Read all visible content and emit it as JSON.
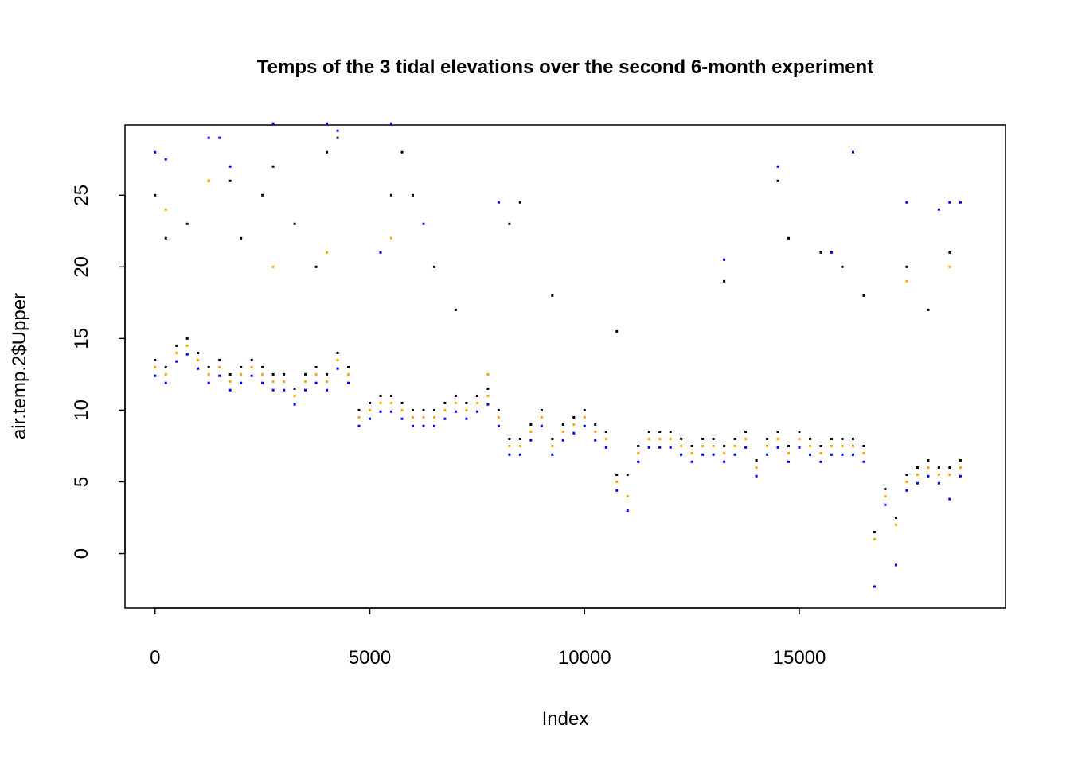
{
  "chart_data": {
    "type": "scatter",
    "title": "Temps of the 3 tidal elevations over the second 6-month experiment",
    "xlabel": "Index",
    "ylabel": "air.temp.2$Upper",
    "xlim": [
      -700,
      19800
    ],
    "ylim": [
      -3.8,
      29.9
    ],
    "xticks": [
      "0",
      "5000",
      "10000",
      "15000"
    ],
    "xtick_values": [
      0,
      5000,
      10000,
      15000
    ],
    "yticks": [
      "0",
      "5",
      "10",
      "15",
      "20",
      "25"
    ],
    "ytick_values": [
      0,
      5,
      10,
      15,
      20,
      25
    ],
    "grid": false,
    "legend": "none",
    "series": [
      {
        "color": "#000000",
        "points": [
          [
            0,
            13.5
          ],
          [
            250,
            13
          ],
          [
            500,
            14.5
          ],
          [
            750,
            15
          ],
          [
            1000,
            14
          ],
          [
            1250,
            13
          ],
          [
            1500,
            13.5
          ],
          [
            1750,
            12.5
          ],
          [
            2000,
            13
          ],
          [
            2250,
            13.5
          ],
          [
            2500,
            13
          ],
          [
            2750,
            12.5
          ],
          [
            3000,
            12.5
          ],
          [
            3250,
            11.5
          ],
          [
            3500,
            12.5
          ],
          [
            3750,
            13
          ],
          [
            4000,
            12.5
          ],
          [
            4250,
            14
          ],
          [
            4500,
            13
          ],
          [
            4750,
            10
          ],
          [
            5000,
            10.5
          ],
          [
            5250,
            11
          ],
          [
            5500,
            11
          ],
          [
            5750,
            10.5
          ],
          [
            6000,
            10
          ],
          [
            6250,
            10
          ],
          [
            6500,
            10
          ],
          [
            6750,
            10.5
          ],
          [
            7000,
            11
          ],
          [
            7250,
            10.5
          ],
          [
            7500,
            11
          ],
          [
            7750,
            11.5
          ],
          [
            8000,
            10
          ],
          [
            8250,
            8
          ],
          [
            8500,
            8
          ],
          [
            8750,
            9
          ],
          [
            9000,
            10
          ],
          [
            9250,
            8
          ],
          [
            9500,
            9
          ],
          [
            9750,
            9.5
          ],
          [
            10000,
            10
          ],
          [
            10250,
            9
          ],
          [
            10500,
            8.5
          ],
          [
            10750,
            5.5
          ],
          [
            11000,
            5.5
          ],
          [
            11250,
            7.5
          ],
          [
            11500,
            8.5
          ],
          [
            11750,
            8.5
          ],
          [
            12000,
            8.5
          ],
          [
            12250,
            8
          ],
          [
            12500,
            7.5
          ],
          [
            12750,
            8
          ],
          [
            13000,
            8
          ],
          [
            13250,
            7.5
          ],
          [
            13500,
            8
          ],
          [
            13750,
            8.5
          ],
          [
            14000,
            6.5
          ],
          [
            14250,
            8
          ],
          [
            14500,
            8.5
          ],
          [
            14750,
            7.5
          ],
          [
            15000,
            8.5
          ],
          [
            15250,
            8
          ],
          [
            15500,
            7.5
          ],
          [
            15750,
            8
          ],
          [
            16000,
            8
          ],
          [
            16250,
            8
          ],
          [
            16500,
            7.5
          ],
          [
            16750,
            1.5
          ],
          [
            17000,
            4.5
          ],
          [
            17250,
            2.5
          ],
          [
            17500,
            5.5
          ],
          [
            17750,
            6
          ],
          [
            18000,
            6.5
          ],
          [
            18250,
            6
          ],
          [
            18500,
            6
          ],
          [
            18750,
            6.5
          ],
          [
            0,
            25
          ],
          [
            250,
            22
          ],
          [
            750,
            23
          ],
          [
            1250,
            26
          ],
          [
            1750,
            26
          ],
          [
            2000,
            22
          ],
          [
            2500,
            25
          ],
          [
            2750,
            27
          ],
          [
            3250,
            23
          ],
          [
            3750,
            20
          ],
          [
            4000,
            28
          ],
          [
            4250,
            29
          ],
          [
            5500,
            25
          ],
          [
            5750,
            28
          ],
          [
            6000,
            25
          ],
          [
            6500,
            20
          ],
          [
            7000,
            17
          ],
          [
            8250,
            23
          ],
          [
            8500,
            24.5
          ],
          [
            9250,
            18
          ],
          [
            10750,
            15.5
          ],
          [
            13250,
            19
          ],
          [
            14500,
            26
          ],
          [
            14750,
            22
          ],
          [
            15500,
            21
          ],
          [
            16000,
            20
          ],
          [
            16500,
            18
          ],
          [
            17500,
            20
          ],
          [
            18000,
            17
          ],
          [
            18500,
            21
          ]
        ]
      },
      {
        "color": "#0000FF",
        "points": [
          [
            0,
            12.4
          ],
          [
            250,
            11.9
          ],
          [
            500,
            13.4
          ],
          [
            750,
            13.9
          ],
          [
            1000,
            12.9
          ],
          [
            1250,
            11.9
          ],
          [
            1500,
            12.4
          ],
          [
            1750,
            11.4
          ],
          [
            2000,
            11.9
          ],
          [
            2250,
            12.4
          ],
          [
            2500,
            11.9
          ],
          [
            2750,
            11.4
          ],
          [
            3000,
            11.4
          ],
          [
            3250,
            10.4
          ],
          [
            3500,
            11.4
          ],
          [
            3750,
            11.9
          ],
          [
            4000,
            11.4
          ],
          [
            4250,
            12.9
          ],
          [
            4500,
            11.9
          ],
          [
            4750,
            8.9
          ],
          [
            5000,
            9.4
          ],
          [
            5250,
            9.9
          ],
          [
            5500,
            9.9
          ],
          [
            5750,
            9.4
          ],
          [
            6000,
            8.9
          ],
          [
            6250,
            8.9
          ],
          [
            6500,
            8.9
          ],
          [
            6750,
            9.4
          ],
          [
            7000,
            9.9
          ],
          [
            7250,
            9.4
          ],
          [
            7500,
            9.9
          ],
          [
            7750,
            10.4
          ],
          [
            8000,
            8.9
          ],
          [
            8250,
            6.9
          ],
          [
            8500,
            6.9
          ],
          [
            8750,
            7.9
          ],
          [
            9000,
            8.9
          ],
          [
            9250,
            6.9
          ],
          [
            9500,
            7.9
          ],
          [
            9750,
            8.4
          ],
          [
            10000,
            8.9
          ],
          [
            10250,
            7.9
          ],
          [
            10500,
            7.4
          ],
          [
            10750,
            4.4
          ],
          [
            11000,
            3
          ],
          [
            11250,
            6.4
          ],
          [
            11500,
            7.4
          ],
          [
            11750,
            7.4
          ],
          [
            12000,
            7.4
          ],
          [
            12250,
            6.9
          ],
          [
            12500,
            6.4
          ],
          [
            12750,
            6.9
          ],
          [
            13000,
            6.9
          ],
          [
            13250,
            6.4
          ],
          [
            13500,
            6.9
          ],
          [
            13750,
            7.4
          ],
          [
            14000,
            5.4
          ],
          [
            14250,
            6.9
          ],
          [
            14500,
            7.4
          ],
          [
            14750,
            6.4
          ],
          [
            15000,
            7.4
          ],
          [
            15250,
            6.9
          ],
          [
            15500,
            6.4
          ],
          [
            15750,
            6.9
          ],
          [
            16000,
            6.9
          ],
          [
            16250,
            6.9
          ],
          [
            16500,
            6.4
          ],
          [
            16750,
            -2.3
          ],
          [
            17000,
            3.4
          ],
          [
            17250,
            -0.8
          ],
          [
            17500,
            4.4
          ],
          [
            17750,
            4.9
          ],
          [
            18000,
            5.4
          ],
          [
            18250,
            4.9
          ],
          [
            18500,
            3.8
          ],
          [
            18750,
            5.4
          ],
          [
            0,
            28
          ],
          [
            250,
            27.5
          ],
          [
            1250,
            29
          ],
          [
            1500,
            29
          ],
          [
            1750,
            27
          ],
          [
            2750,
            30
          ],
          [
            4000,
            30
          ],
          [
            4250,
            29.5
          ],
          [
            5250,
            21
          ],
          [
            5500,
            30
          ],
          [
            6250,
            23
          ],
          [
            8000,
            24.5
          ],
          [
            13250,
            20.5
          ],
          [
            14500,
            27
          ],
          [
            15750,
            21
          ],
          [
            16250,
            28
          ],
          [
            17500,
            24.5
          ],
          [
            18250,
            24
          ],
          [
            18500,
            24.5
          ],
          [
            18750,
            24.5
          ]
        ]
      },
      {
        "color": "#FFA500",
        "points": [
          [
            0,
            13
          ],
          [
            250,
            12.5
          ],
          [
            500,
            14
          ],
          [
            750,
            14.5
          ],
          [
            1000,
            13.5
          ],
          [
            1250,
            12.5
          ],
          [
            1500,
            13
          ],
          [
            1750,
            12
          ],
          [
            2000,
            12.5
          ],
          [
            2250,
            13
          ],
          [
            2500,
            12.5
          ],
          [
            2750,
            12
          ],
          [
            3000,
            12
          ],
          [
            3250,
            11
          ],
          [
            3500,
            12
          ],
          [
            3750,
            12.5
          ],
          [
            4000,
            12
          ],
          [
            4250,
            13.5
          ],
          [
            4500,
            12.5
          ],
          [
            4750,
            9.5
          ],
          [
            5000,
            10
          ],
          [
            5250,
            10.5
          ],
          [
            5500,
            10.5
          ],
          [
            5750,
            10
          ],
          [
            6000,
            9.5
          ],
          [
            6250,
            9.5
          ],
          [
            6500,
            9.5
          ],
          [
            6750,
            10
          ],
          [
            7000,
            10.5
          ],
          [
            7250,
            10
          ],
          [
            7500,
            10.5
          ],
          [
            7750,
            11
          ],
          [
            8000,
            9.5
          ],
          [
            8250,
            7.5
          ],
          [
            8500,
            7.5
          ],
          [
            8750,
            8.5
          ],
          [
            9000,
            9.5
          ],
          [
            9250,
            7.5
          ],
          [
            9500,
            8.5
          ],
          [
            9750,
            9
          ],
          [
            10000,
            9.5
          ],
          [
            10250,
            8.5
          ],
          [
            10500,
            8
          ],
          [
            10750,
            5
          ],
          [
            11000,
            4
          ],
          [
            11250,
            7
          ],
          [
            11500,
            8
          ],
          [
            11750,
            8
          ],
          [
            12000,
            8
          ],
          [
            12250,
            7.5
          ],
          [
            12500,
            7
          ],
          [
            12750,
            7.5
          ],
          [
            13000,
            7.5
          ],
          [
            13250,
            7
          ],
          [
            13500,
            7.5
          ],
          [
            13750,
            8
          ],
          [
            14000,
            6
          ],
          [
            14250,
            7.5
          ],
          [
            14500,
            8
          ],
          [
            14750,
            7
          ],
          [
            15000,
            8
          ],
          [
            15250,
            7.5
          ],
          [
            15500,
            7
          ],
          [
            15750,
            7.5
          ],
          [
            16000,
            7.5
          ],
          [
            16250,
            7.5
          ],
          [
            16500,
            7
          ],
          [
            16750,
            1
          ],
          [
            17000,
            4
          ],
          [
            17250,
            2
          ],
          [
            17500,
            5
          ],
          [
            17750,
            5.5
          ],
          [
            18000,
            6
          ],
          [
            18250,
            5.5
          ],
          [
            18500,
            5.5
          ],
          [
            18750,
            6
          ],
          [
            250,
            24
          ],
          [
            1250,
            26
          ],
          [
            2750,
            20
          ],
          [
            4000,
            21
          ],
          [
            5500,
            22
          ],
          [
            7750,
            12.5
          ],
          [
            17500,
            19
          ],
          [
            18500,
            20
          ]
        ]
      }
    ]
  }
}
